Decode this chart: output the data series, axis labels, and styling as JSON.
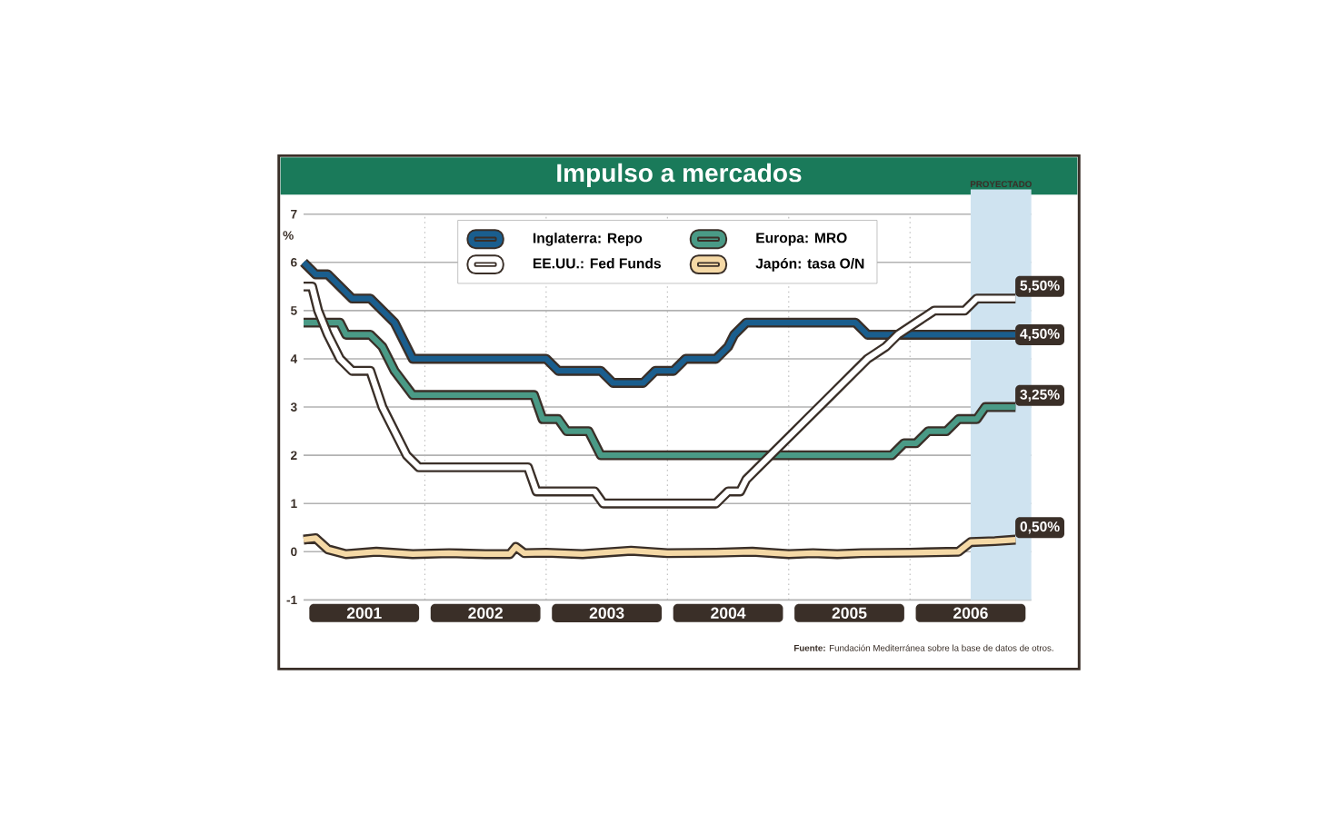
{
  "chart_data": {
    "type": "line",
    "title": "Impulso a mercados",
    "ylabel": "%",
    "xlim": [
      2001,
      2007
    ],
    "xticks": [
      {
        "value": 2002,
        "label": null
      },
      {
        "value": 2003,
        "label": null
      },
      {
        "value": 2004,
        "label": null
      },
      {
        "value": 2005,
        "label": null
      },
      {
        "value": 2006,
        "label": null
      },
      {
        "value": 2001.5,
        "label": "2001"
      },
      {
        "value": 2002.5,
        "label": "2002"
      },
      {
        "value": 2003.5,
        "label": "2003"
      },
      {
        "value": 2004.5,
        "label": "2004"
      },
      {
        "value": 2005.5,
        "label": "2005"
      },
      {
        "value": 2006.5,
        "label": "2006"
      }
    ],
    "ylim": [
      -1,
      7
    ],
    "yticks": [
      -1,
      0,
      1,
      2,
      3,
      4,
      5,
      6,
      7
    ],
    "grid": true,
    "legend": "top",
    "bands": [
      {
        "axis": "x",
        "from": 2006.5,
        "to": 2007,
        "label": "PROYECTADO",
        "color": "#cfe3f0"
      }
    ],
    "series": [
      {
        "name": "Inglaterra: Repo",
        "color": "#1a5e8e",
        "x": [
          2001.0,
          2001.1,
          2001.2,
          2001.4,
          2001.55,
          2001.75,
          2001.9,
          2003.0,
          2003.1,
          2003.45,
          2003.55,
          2003.8,
          2003.9,
          2004.05,
          2004.15,
          2004.4,
          2004.5,
          2004.55,
          2004.65,
          2005.55,
          2005.65,
          2006.87
        ],
        "values": [
          6.0,
          5.75,
          5.75,
          5.25,
          5.25,
          4.75,
          4.0,
          4.0,
          3.75,
          3.75,
          3.5,
          3.5,
          3.75,
          3.75,
          4.0,
          4.0,
          4.25,
          4.5,
          4.75,
          4.75,
          4.5,
          4.5
        ]
      },
      {
        "name": "Europa: MRO",
        "color": "#4a9a86",
        "x": [
          2001.0,
          2001.3,
          2001.35,
          2001.55,
          2001.65,
          2001.75,
          2001.9,
          2002.9,
          2002.97,
          2003.1,
          2003.17,
          2003.35,
          2003.45,
          2005.85,
          2005.95,
          2006.05,
          2006.15,
          2006.3,
          2006.4,
          2006.55,
          2006.62,
          2006.87
        ],
        "values": [
          4.75,
          4.75,
          4.5,
          4.5,
          4.25,
          3.75,
          3.25,
          3.25,
          2.75,
          2.75,
          2.5,
          2.5,
          2.0,
          2.0,
          2.25,
          2.25,
          2.5,
          2.5,
          2.75,
          2.75,
          3.0,
          3.0
        ]
      },
      {
        "name": "EE.UU.: Fed Funds",
        "color": "#ffffff",
        "x": [
          2001.0,
          2001.07,
          2001.12,
          2001.2,
          2001.3,
          2001.4,
          2001.55,
          2001.65,
          2001.75,
          2001.85,
          2001.95,
          2002.85,
          2002.92,
          2003.4,
          2003.47,
          2004.4,
          2004.5,
          2004.6,
          2004.65,
          2004.75,
          2004.85,
          2004.95,
          2005.05,
          2005.15,
          2005.25,
          2005.35,
          2005.45,
          2005.55,
          2005.65,
          2005.8,
          2005.9,
          2006.05,
          2006.2,
          2006.45,
          2006.55,
          2006.87
        ],
        "values": [
          5.5,
          5.5,
          5.0,
          4.5,
          4.0,
          3.75,
          3.75,
          3.0,
          2.5,
          2.0,
          1.75,
          1.75,
          1.25,
          1.25,
          1.0,
          1.0,
          1.25,
          1.25,
          1.5,
          1.75,
          2.0,
          2.25,
          2.5,
          2.75,
          3.0,
          3.25,
          3.5,
          3.75,
          4.0,
          4.25,
          4.5,
          4.75,
          5.0,
          5.0,
          5.25,
          5.25
        ]
      },
      {
        "name": "Japón: tasa O/N",
        "color": "#f5d9a6",
        "x": [
          2001.0,
          2001.1,
          2001.2,
          2001.35,
          2001.6,
          2001.9,
          2002.2,
          2002.5,
          2002.7,
          2002.75,
          2002.82,
          2003.0,
          2003.3,
          2003.7,
          2004.0,
          2004.4,
          2004.7,
          2005.0,
          2005.2,
          2005.4,
          2005.6,
          2006.0,
          2006.4,
          2006.5,
          2006.7,
          2006.87
        ],
        "values": [
          0.25,
          0.28,
          0.05,
          -0.05,
          0.0,
          -0.05,
          -0.03,
          -0.05,
          -0.05,
          0.1,
          -0.03,
          -0.02,
          -0.05,
          0.02,
          -0.03,
          -0.02,
          0.0,
          -0.05,
          -0.03,
          -0.05,
          -0.03,
          -0.02,
          0.0,
          0.2,
          0.22,
          0.25
        ]
      }
    ],
    "annotations": [
      "5,50%",
      "4,50%",
      "3,25%",
      "0,50%",
      "**Fuente:** Fundación Mediterránea sobre la base de datos de otros."
    ]
  }
}
